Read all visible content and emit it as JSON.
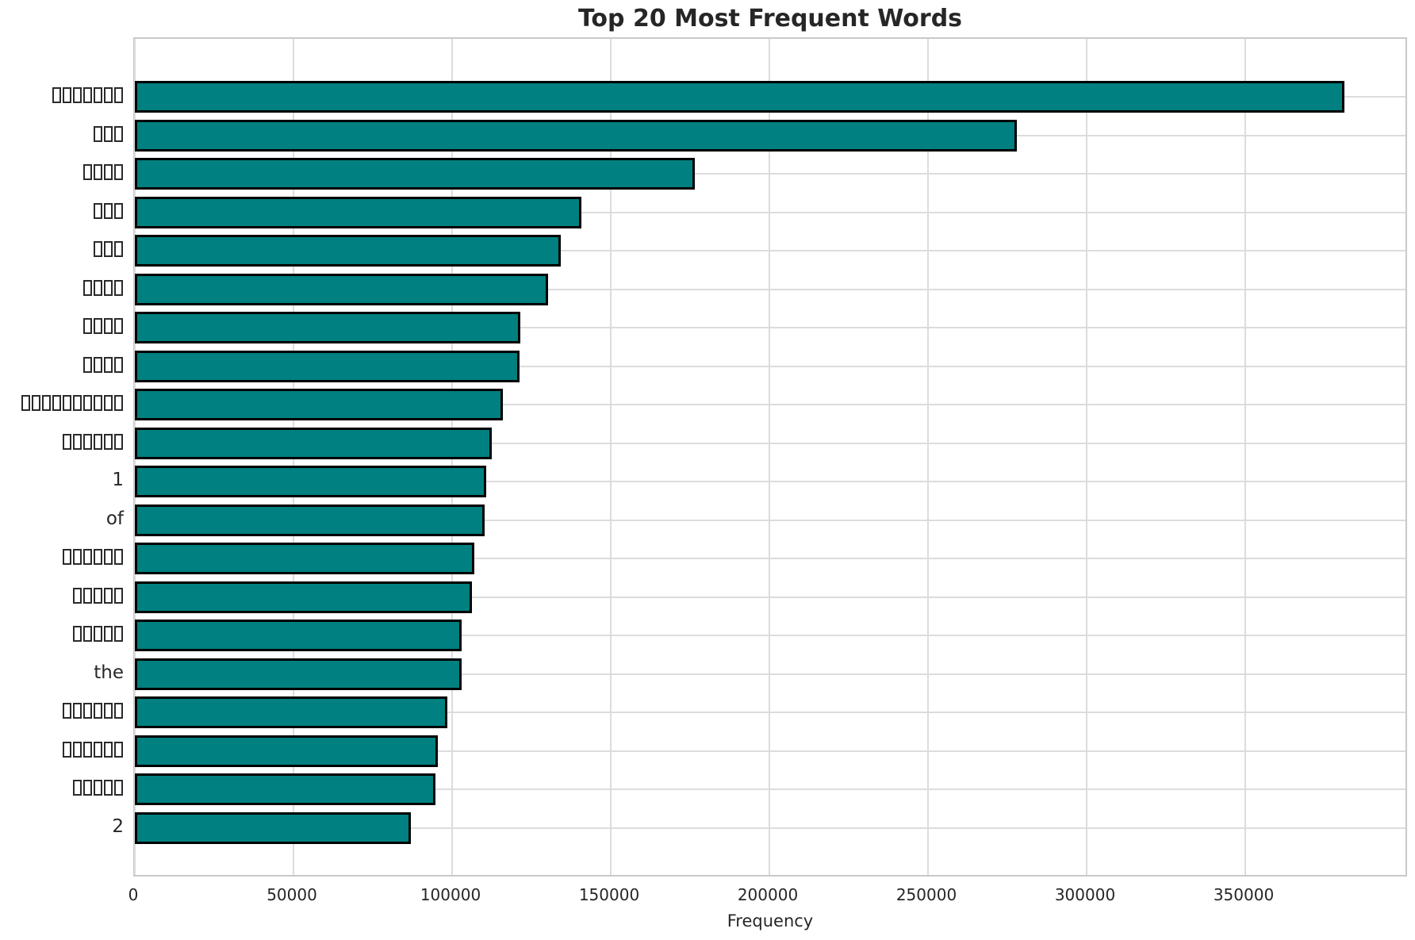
{
  "title": "Top 20 Most Frequent Words",
  "xlabel": "Frequency",
  "colors": {
    "bar_fill": "#008080",
    "bar_edge": "#000000",
    "grid": "#dcdcdc",
    "spine": "#c9c9c9",
    "text": "#262626",
    "background": "#ffffff"
  },
  "chart_data": {
    "type": "bar",
    "orientation": "horizontal",
    "title": "Top 20 Most Frequent Words",
    "xlabel": "Frequency",
    "ylabel": "",
    "xlim": [
      0,
      401500
    ],
    "x_ticks": [
      0,
      50000,
      100000,
      150000,
      200000,
      250000,
      300000,
      350000
    ],
    "grid": true,
    "legend_position": "none",
    "categories": [
      "▯▯▯▯▯▯▯",
      "▯▯▯",
      "▯▯▯▯",
      "▯▯▯",
      "▯▯▯",
      "▯▯▯▯",
      "▯▯▯▯",
      "▯▯▯▯",
      "▯▯▯▯▯▯▯▯▯▯",
      "▯▯▯▯▯▯",
      "1",
      "of",
      "▯▯▯▯▯▯",
      "▯▯▯▯▯",
      "▯▯▯▯▯",
      "the",
      "▯▯▯▯▯▯",
      "▯▯▯▯▯▯",
      "▯▯▯▯▯",
      "2"
    ],
    "values": [
      381250,
      278000,
      176500,
      140800,
      134200,
      130300,
      121500,
      121200,
      116000,
      112500,
      110800,
      110300,
      107000,
      106300,
      103100,
      102900,
      98500,
      95600,
      94800,
      87000
    ]
  }
}
